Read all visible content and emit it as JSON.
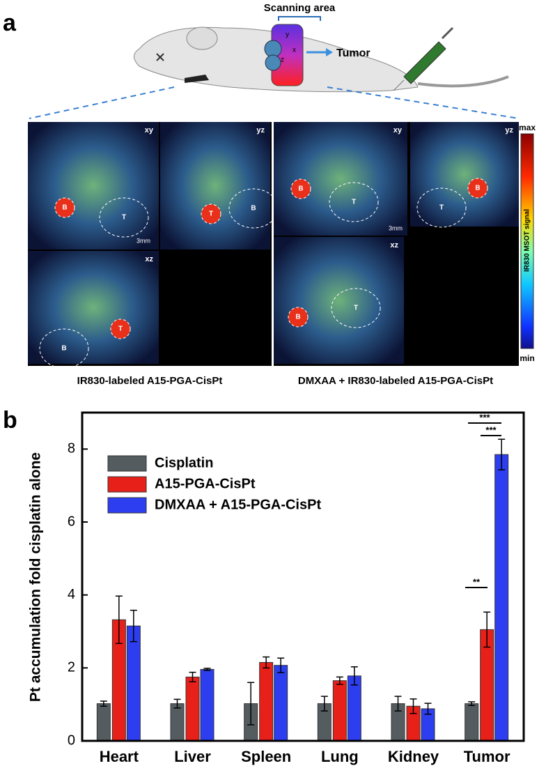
{
  "panel_a": {
    "label": "a",
    "scanning_area": "Scanning area",
    "tumor": "Tumor",
    "axes": [
      "y",
      "x",
      "z"
    ],
    "views": [
      {
        "name": "xy",
        "scale": "3mm",
        "regions": [
          "B",
          "T"
        ]
      },
      {
        "name": "yz",
        "regions": [
          "T",
          "B"
        ]
      },
      {
        "name": "xz",
        "regions": [
          "T",
          "B"
        ]
      },
      {
        "name": "xy",
        "scale": "3mm",
        "regions": [
          "B",
          "T"
        ]
      },
      {
        "name": "yz",
        "regions": [
          "B",
          "T"
        ]
      },
      {
        "name": "xz",
        "regions": [
          "B",
          "T"
        ]
      }
    ],
    "colorbar": {
      "max": "max",
      "min": "min",
      "title": "IR830 MSOT signal"
    },
    "captions": [
      "IR830-labeled A15-PGA-CisPt",
      "DMXAA + IR830-labeled A15-PGA-CisPt"
    ]
  },
  "chart_data": {
    "type": "bar",
    "label": "b",
    "y_label": "Pt accumulation fold cisplatin alone",
    "categories": [
      "Heart",
      "Liver",
      "Spleen",
      "Lung",
      "Kidney",
      "Tumor"
    ],
    "series": [
      {
        "name": "Cisplatin",
        "color": "#555c60",
        "values": [
          1.02,
          1.02,
          1.02,
          1.02,
          1.02,
          1.02
        ],
        "errors": [
          0.07,
          0.12,
          0.58,
          0.2,
          0.2,
          0.05
        ]
      },
      {
        "name": "A15-PGA-CisPt",
        "color": "#e8201a",
        "values": [
          3.32,
          1.75,
          2.15,
          1.65,
          0.95,
          3.05
        ],
        "errors": [
          0.65,
          0.13,
          0.15,
          0.1,
          0.2,
          0.48
        ]
      },
      {
        "name": "DMXAA + A15-PGA-CisPt",
        "color": "#2c3ef0",
        "values": [
          3.15,
          1.96,
          2.07,
          1.78,
          0.88,
          7.85
        ],
        "errors": [
          0.43,
          0.03,
          0.2,
          0.25,
          0.15,
          0.42
        ]
      }
    ],
    "ylim": [
      0,
      9
    ],
    "yticks": [
      0,
      2,
      4,
      6,
      8
    ],
    "legend": "upper-left",
    "annotations": [
      "**",
      "***",
      "***"
    ]
  }
}
